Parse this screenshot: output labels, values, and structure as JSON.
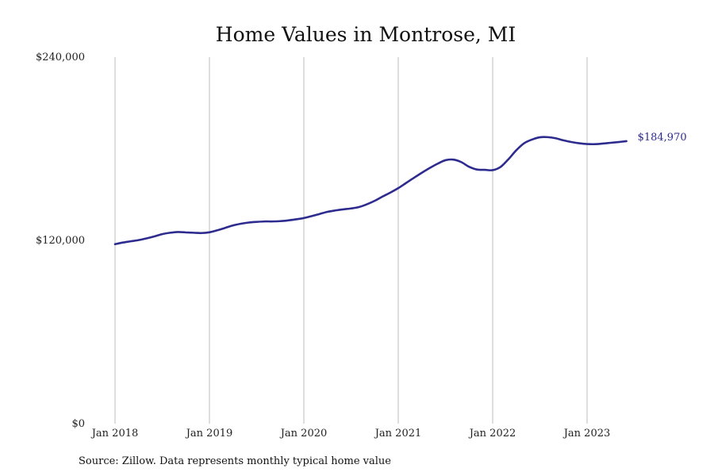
{
  "chart_data": {
    "type": "line",
    "title": "Home Values in Montrose, MI",
    "xlabel": "",
    "ylabel": "",
    "ylim": [
      0,
      240000
    ],
    "y_ticks": [
      {
        "value": 0,
        "label": "$0"
      },
      {
        "value": 120000,
        "label": "$120,000"
      },
      {
        "value": 240000,
        "label": "$240,000"
      }
    ],
    "x_ticks": [
      {
        "value": "2018-01",
        "label": "Jan 2018"
      },
      {
        "value": "2019-01",
        "label": "Jan 2019"
      },
      {
        "value": "2020-01",
        "label": "Jan 2020"
      },
      {
        "value": "2021-01",
        "label": "Jan 2021"
      },
      {
        "value": "2022-01",
        "label": "Jan 2022"
      },
      {
        "value": "2023-01",
        "label": "Jan 2023"
      }
    ],
    "grid": {
      "vertical": true,
      "horizontal": false
    },
    "legend": "none",
    "series": [
      {
        "color": "#2e2b8f",
        "points": [
          [
            "2018-01",
            117500
          ],
          [
            "2018-02",
            118600
          ],
          [
            "2018-03",
            119400
          ],
          [
            "2018-04",
            120200
          ],
          [
            "2018-05",
            121300
          ],
          [
            "2018-06",
            122600
          ],
          [
            "2018-07",
            124100
          ],
          [
            "2018-08",
            125000
          ],
          [
            "2018-09",
            125500
          ],
          [
            "2018-10",
            125200
          ],
          [
            "2018-11",
            125000
          ],
          [
            "2018-12",
            124800
          ],
          [
            "2019-01",
            125300
          ],
          [
            "2019-02",
            126600
          ],
          [
            "2019-03",
            128200
          ],
          [
            "2019-04",
            129800
          ],
          [
            "2019-05",
            130900
          ],
          [
            "2019-06",
            131700
          ],
          [
            "2019-07",
            132100
          ],
          [
            "2019-08",
            132400
          ],
          [
            "2019-09",
            132400
          ],
          [
            "2019-10",
            132600
          ],
          [
            "2019-11",
            133100
          ],
          [
            "2019-12",
            133800
          ],
          [
            "2020-01",
            134600
          ],
          [
            "2020-02",
            135900
          ],
          [
            "2020-03",
            137300
          ],
          [
            "2020-04",
            138700
          ],
          [
            "2020-05",
            139600
          ],
          [
            "2020-06",
            140300
          ],
          [
            "2020-07",
            140900
          ],
          [
            "2020-08",
            141800
          ],
          [
            "2020-09",
            143600
          ],
          [
            "2020-10",
            145900
          ],
          [
            "2020-11",
            148700
          ],
          [
            "2020-12",
            151300
          ],
          [
            "2021-01",
            154200
          ],
          [
            "2021-02",
            157600
          ],
          [
            "2021-03",
            161000
          ],
          [
            "2021-04",
            164300
          ],
          [
            "2021-05",
            167400
          ],
          [
            "2021-06",
            170200
          ],
          [
            "2021-07",
            172500
          ],
          [
            "2021-08",
            172900
          ],
          [
            "2021-09",
            171300
          ],
          [
            "2021-10",
            168200
          ],
          [
            "2021-11",
            166400
          ],
          [
            "2021-12",
            166200
          ],
          [
            "2022-01",
            166000
          ],
          [
            "2022-02",
            168100
          ],
          [
            "2022-03",
            173100
          ],
          [
            "2022-04",
            179000
          ],
          [
            "2022-05",
            183600
          ],
          [
            "2022-06",
            186000
          ],
          [
            "2022-07",
            187500
          ],
          [
            "2022-08",
            187600
          ],
          [
            "2022-09",
            186900
          ],
          [
            "2022-10",
            185500
          ],
          [
            "2022-11",
            184400
          ],
          [
            "2022-12",
            183600
          ],
          [
            "2023-01",
            183100
          ],
          [
            "2023-02",
            183000
          ],
          [
            "2023-03",
            183400
          ],
          [
            "2023-04",
            183900
          ],
          [
            "2023-05",
            184400
          ],
          [
            "2023-06",
            184970
          ]
        ]
      }
    ],
    "end_label": "$184,970",
    "source_note": "Source: Zillow. Data represents monthly typical home value"
  }
}
